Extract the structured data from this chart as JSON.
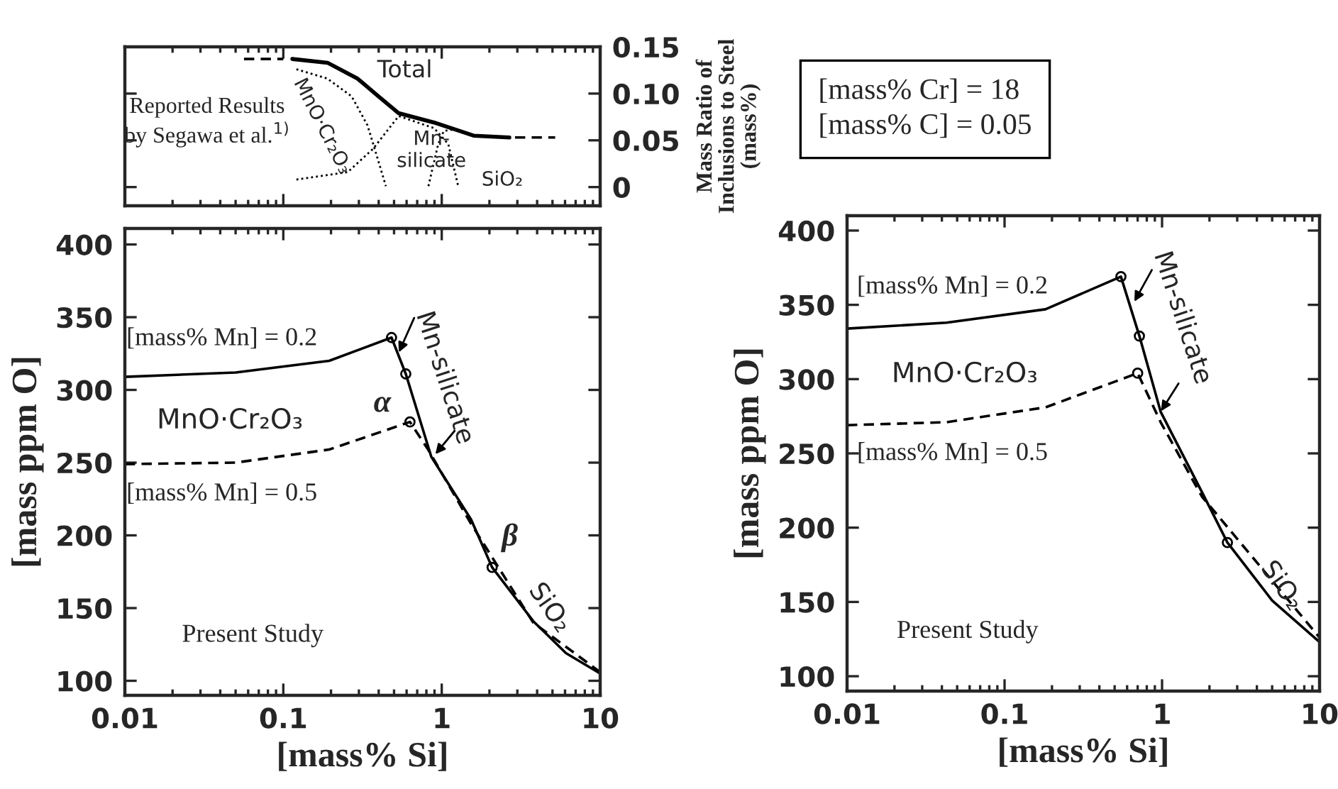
{
  "chart_data": [
    {
      "type": "line",
      "log": "x",
      "xlim": [
        0.01,
        10
      ],
      "tick_labels": "y2",
      "y2label": "Mass Ratio of\nInclusions to Steel\n(mass%)",
      "y2lim": [
        -0.02,
        0.15
      ],
      "y2ticks": [
        0,
        0.05,
        {
          "value": 0.1,
          "label": "0.10"
        },
        0.15
      ],
      "series": [
        {
          "name": "Total",
          "color": "#000000",
          "axis": "y2",
          "line_style": "solid",
          "x": [
            0.114,
            0.19,
            0.294,
            0.393,
            0.535,
            0.895,
            1.59,
            2.67
          ],
          "values": [
            0.137,
            0.133,
            0.116,
            0.098,
            0.079,
            0.069,
            0.055,
            0.053
          ]
        },
        {
          "color": "#000000",
          "axis": "y2",
          "line_style": "dashed",
          "x": [
            0.0565,
            0.1
          ],
          "values": [
            0.137,
            0.137
          ]
        },
        {
          "color": "#000000",
          "axis": "y2",
          "line_style": "dashed",
          "x": [
            2.9,
            5.2
          ],
          "values": [
            0.053,
            0.053
          ]
        },
        {
          "color": "#000000",
          "axis": "y2",
          "line_style": "dotted",
          "x": [
            0.121,
            0.19,
            0.27,
            0.34,
            0.393,
            0.444
          ],
          "values": [
            0.126,
            0.116,
            0.097,
            0.066,
            0.031,
            0.001
          ]
        },
        {
          "color": "#000000",
          "axis": "y2",
          "line_style": "dotted",
          "x": [
            0.121,
            0.255,
            0.369,
            0.535,
            0.895,
            1.1,
            1.27
          ],
          "values": [
            0.008,
            0.016,
            0.041,
            0.076,
            0.063,
            0.046,
            0.001
          ]
        },
        {
          "color": "#000000",
          "axis": "y2",
          "line_style": "dotted",
          "x": [
            0.824,
            0.95,
            1.03,
            1.24
          ],
          "values": [
            0.001,
            0.046,
            0.06,
            0.062
          ]
        }
      ],
      "annotations": [
        "Reported Results\nby Segawa et al.$^{1)}$",
        "MnO·Cr₂O₃",
        "Mn-\nsilicate",
        "SiO₂"
      ]
    },
    {
      "type": "line",
      "log": "x",
      "xlabel": "[mass% Si]",
      "ylabel": "[mass ppm O]",
      "xlim": [
        0.01,
        10
      ],
      "xticks": [
        0.01,
        0.1,
        1,
        10
      ],
      "ylim": [
        90,
        411
      ],
      "yticks": [
        100,
        150,
        200,
        250,
        300,
        350,
        400
      ],
      "series": [
        {
          "name": "[mass% Mn] = 0.2",
          "color": "#000000",
          "line_style": "solid",
          "x": [
            0.01,
            0.05,
            0.195,
            0.482,
            0.593,
            0.859,
            1.53,
            2.08,
            3.78,
            6.08,
            10
          ],
          "values": [
            309,
            312,
            320,
            336,
            311,
            254,
            211,
            178,
            141,
            119,
            105
          ]
        },
        {
          "name": "[mass% Mn] = 0.5",
          "color": "#000000",
          "line_style": "dashed",
          "x": [
            0.01,
            0.05,
            0.195,
            0.63,
            0.82,
            1.53,
            3.78,
            10
          ],
          "values": [
            249,
            250,
            259,
            278,
            259,
            208,
            140,
            106
          ]
        },
        {
          "type": "scatter",
          "color": "#000000",
          "marker": "circle",
          "x": [
            0.482,
            0.593,
            0.63,
            2.08
          ],
          "values": [
            336,
            311,
            278,
            178
          ]
        }
      ],
      "annotations": [
        "MnO·Cr₂O₃",
        "Mn-silicate",
        {
          "text": "α",
          "x": 0.63,
          "y": 278
        },
        {
          "text": "β",
          "x": 2.08,
          "y": 178
        },
        "SiO₂",
        "Present Study"
      ]
    },
    {
      "type": "line",
      "log": "x",
      "xlabel": "[mass% Si]",
      "ylabel": "[mass ppm O]",
      "xlim": [
        0.01,
        10
      ],
      "xticks": [
        0.01,
        0.1,
        1,
        10
      ],
      "ylim": [
        90,
        410
      ],
      "yticks": [
        100,
        150,
        200,
        250,
        300,
        350,
        400
      ],
      "series": [
        {
          "name": "[mass% Mn] = 0.2",
          "color": "#000000",
          "line_style": "solid",
          "x": [
            0.01,
            0.0428,
            0.182,
            0.548,
            0.718,
            0.98,
            1.79,
            2.6,
            5.0,
            10
          ],
          "values": [
            334,
            338,
            347,
            369,
            329,
            278,
            224,
            190,
            151,
            123
          ]
        },
        {
          "name": "[mass% Mn] = 0.5",
          "color": "#000000",
          "line_style": "dashed",
          "x": [
            0.01,
            0.0428,
            0.182,
            0.7,
            0.98,
            1.79,
            10
          ],
          "values": [
            269,
            271,
            281,
            304,
            271,
            221,
            126
          ]
        },
        {
          "type": "scatter",
          "color": "#000000",
          "marker": "circle",
          "x": [
            0.548,
            0.718,
            0.7,
            2.6
          ],
          "values": [
            369,
            329,
            304,
            190
          ]
        }
      ],
      "annotations": [
        "MnO·Cr₂O₃",
        "Mn-silicate",
        "SiO₂",
        "Present Study",
        "[mass% Cr] = 18\n[mass% C] = 0.05"
      ]
    }
  ]
}
